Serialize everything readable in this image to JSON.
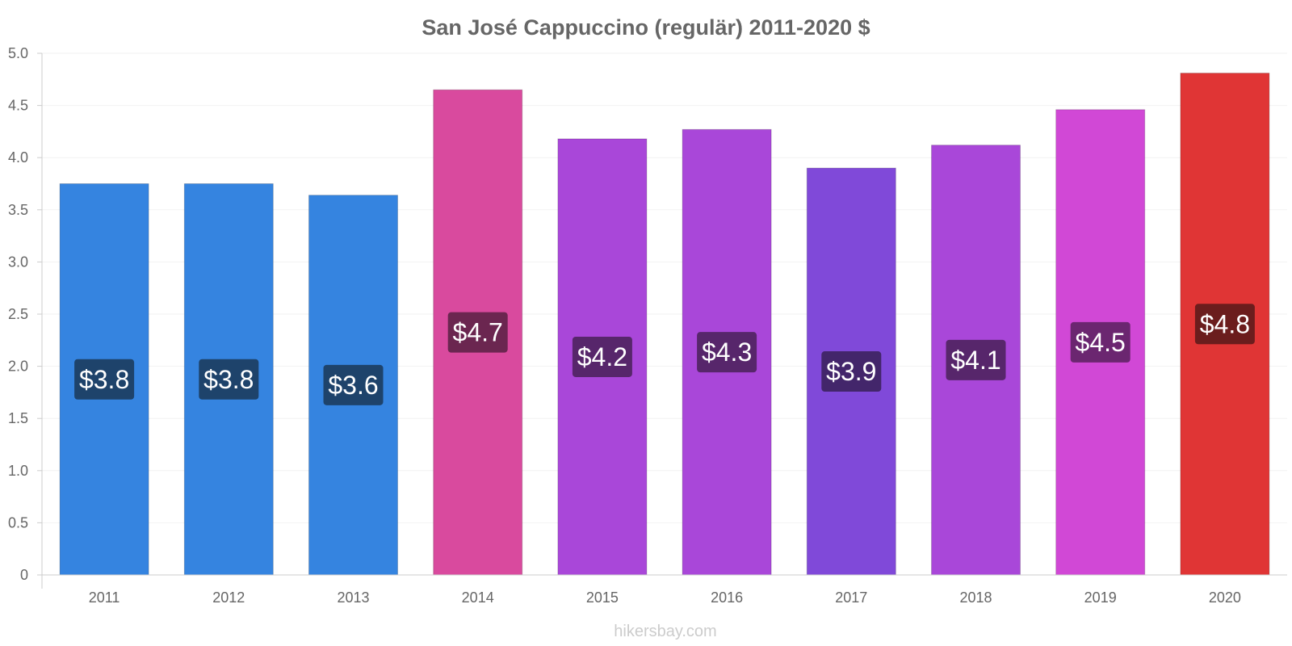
{
  "chart_data": {
    "type": "bar",
    "title": "San José Cappuccino (regulär) 2011-2020 $",
    "categories": [
      "2011",
      "2012",
      "2013",
      "2014",
      "2015",
      "2016",
      "2017",
      "2018",
      "2019",
      "2020"
    ],
    "values": [
      3.75,
      3.75,
      3.64,
      4.65,
      4.18,
      4.27,
      3.9,
      4.12,
      4.46,
      4.81
    ],
    "data_labels": [
      "$3.8",
      "$3.8",
      "$3.6",
      "$4.7",
      "$4.2",
      "$4.3",
      "$3.9",
      "$4.1",
      "$4.5",
      "$4.8"
    ],
    "bar_colors": [
      "#3584e0",
      "#3584e0",
      "#3584e0",
      "#d94a9e",
      "#a947d9",
      "#a947d9",
      "#8049d9",
      "#a947d9",
      "#d148d6",
      "#e03535"
    ],
    "label_colors": [
      "#1e436b",
      "#1e436b",
      "#1e436b",
      "#6b2650",
      "#57266b",
      "#57266b",
      "#43266b",
      "#57266b",
      "#6b2670",
      "#6b1d1d"
    ],
    "ylim": [
      0,
      5
    ],
    "yticks": [
      "0",
      "0.5",
      "1.0",
      "1.5",
      "2.0",
      "2.5",
      "3.0",
      "3.5",
      "4.0",
      "4.5",
      "5.0"
    ],
    "grid": true,
    "legend": "none",
    "xlabel": "",
    "ylabel": ""
  },
  "credit": "hikersbay.com"
}
